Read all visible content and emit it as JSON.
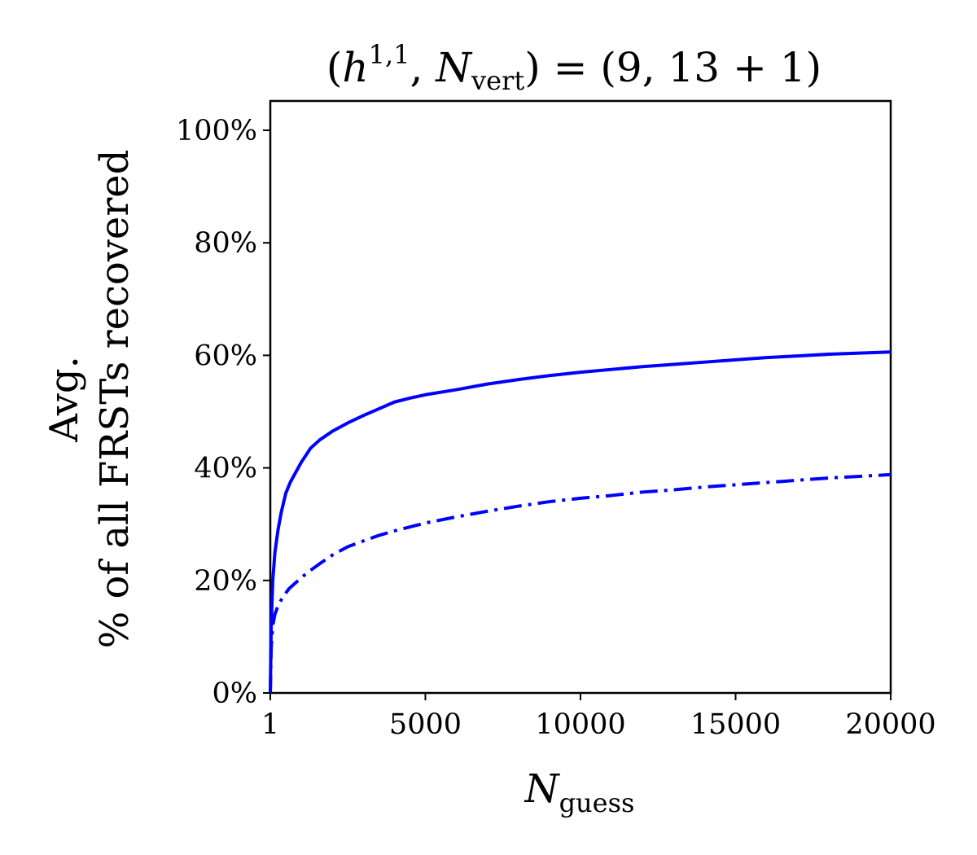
{
  "chart_data": {
    "type": "line",
    "title": {
      "open": "(",
      "h": "h",
      "h_sup": "1,1",
      "sep": ", ",
      "n": "N",
      "n_sub": "vert",
      "rest": ") = (9, 13 + 1)"
    },
    "xlabel": {
      "main": "N",
      "sub": "guess"
    },
    "ylabel": {
      "line1": "Avg.",
      "line2": "% of all FRSTs recovered"
    },
    "xlim": [
      1,
      20000
    ],
    "ylim": [
      0,
      105
    ],
    "x_ticks": [
      {
        "value": 1,
        "label": "1"
      },
      {
        "value": 5000,
        "label": "5000"
      },
      {
        "value": 10000,
        "label": "10000"
      },
      {
        "value": 15000,
        "label": "15000"
      },
      {
        "value": 20000,
        "label": "20000"
      }
    ],
    "y_ticks": [
      {
        "value": 0,
        "label": "0%"
      },
      {
        "value": 20,
        "label": "20%"
      },
      {
        "value": 40,
        "label": "40%"
      },
      {
        "value": 60,
        "label": "60%"
      },
      {
        "value": 80,
        "label": "80%"
      },
      {
        "value": 100,
        "label": "100%"
      }
    ],
    "grid": false,
    "colors": {
      "series": "#0000ff",
      "axes": "#000000"
    },
    "series": [
      {
        "name": "solid",
        "style": "solid",
        "x": [
          1,
          30,
          80,
          150,
          250,
          350,
          500,
          650,
          800,
          1000,
          1300,
          1600,
          2000,
          2500,
          3000,
          3500,
          4000,
          4500,
          5000,
          6000,
          7000,
          8000,
          9000,
          10000,
          11000,
          12000,
          13000,
          14000,
          15000,
          16000,
          17000,
          18000,
          19000,
          20000
        ],
        "y": [
          0,
          12,
          20,
          25,
          29,
          32,
          35.5,
          37.5,
          39,
          41,
          43.5,
          45,
          46.5,
          48,
          49.3,
          50.5,
          51.7,
          52.4,
          53,
          53.9,
          54.9,
          55.7,
          56.4,
          57,
          57.5,
          58,
          58.4,
          58.8,
          59.2,
          59.6,
          59.9,
          60.2,
          60.4,
          60.6
        ]
      },
      {
        "name": "dash-dot",
        "style": "dash-dot",
        "x": [
          1,
          30,
          80,
          150,
          250,
          400,
          600,
          800,
          1000,
          1300,
          1600,
          2000,
          2500,
          3000,
          3500,
          4000,
          5000,
          6000,
          7000,
          8000,
          9000,
          10000,
          11000,
          12000,
          13000,
          14000,
          15000,
          16000,
          17000,
          18000,
          19000,
          20000
        ],
        "y": [
          0,
          8,
          12,
          14,
          15.5,
          17,
          18.5,
          19.5,
          20.5,
          21.8,
          23,
          24.5,
          26,
          27,
          28,
          28.8,
          30.2,
          31.3,
          32.3,
          33.2,
          34,
          34.6,
          35.1,
          35.7,
          36.1,
          36.6,
          37,
          37.4,
          37.8,
          38.2,
          38.5,
          38.8
        ]
      }
    ]
  }
}
